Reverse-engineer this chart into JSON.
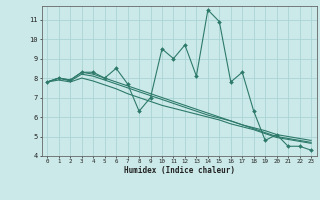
{
  "x": [
    0,
    1,
    2,
    3,
    4,
    5,
    6,
    7,
    8,
    9,
    10,
    11,
    12,
    13,
    14,
    15,
    16,
    17,
    18,
    19,
    20,
    21,
    22,
    23
  ],
  "line1": [
    7.8,
    8.0,
    7.9,
    8.3,
    8.3,
    8.0,
    8.5,
    7.7,
    6.3,
    7.0,
    9.5,
    9.0,
    9.7,
    8.1,
    11.5,
    10.9,
    7.8,
    8.3,
    6.3,
    4.8,
    5.1,
    4.5,
    4.5,
    4.3
  ],
  "line2": [
    7.8,
    8.0,
    7.9,
    8.3,
    8.2,
    8.0,
    7.8,
    7.6,
    7.4,
    7.2,
    7.0,
    6.8,
    6.6,
    6.4,
    6.2,
    6.0,
    5.8,
    5.6,
    5.4,
    5.2,
    5.0,
    4.9,
    4.8,
    4.7
  ],
  "line3": [
    7.8,
    8.0,
    7.85,
    8.2,
    8.1,
    7.9,
    7.7,
    7.5,
    7.3,
    7.1,
    6.9,
    6.7,
    6.5,
    6.3,
    6.1,
    5.95,
    5.8,
    5.6,
    5.45,
    5.3,
    5.1,
    5.0,
    4.9,
    4.8
  ],
  "line4": [
    7.8,
    7.9,
    7.8,
    8.0,
    7.85,
    7.65,
    7.45,
    7.2,
    7.0,
    6.8,
    6.6,
    6.45,
    6.3,
    6.15,
    6.0,
    5.85,
    5.65,
    5.5,
    5.35,
    5.15,
    4.95,
    4.85,
    4.75,
    4.65
  ],
  "bg_color": "#cce9e9",
  "grid_color": "#aad4d4",
  "line_color": "#2d7a6a",
  "xlabel": "Humidex (Indice chaleur)",
  "ylim": [
    4,
    11.7
  ],
  "xlim": [
    -0.5,
    23.5
  ],
  "yticks": [
    4,
    5,
    6,
    7,
    8,
    9,
    10,
    11
  ],
  "xticks": [
    0,
    1,
    2,
    3,
    4,
    5,
    6,
    7,
    8,
    9,
    10,
    11,
    12,
    13,
    14,
    15,
    16,
    17,
    18,
    19,
    20,
    21,
    22,
    23
  ]
}
